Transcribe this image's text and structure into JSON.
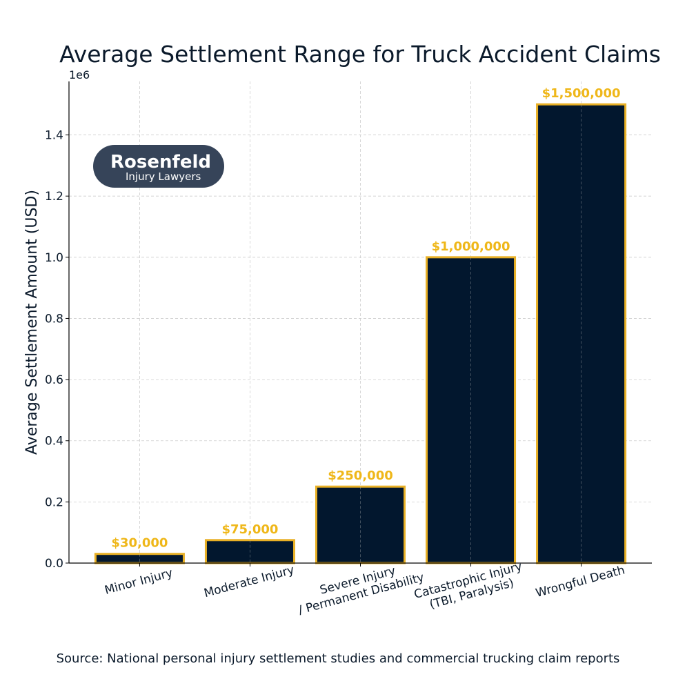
{
  "chart_data": {
    "type": "bar",
    "title": "Average Settlement Range for Truck Accident Claims",
    "xlabel": "",
    "ylabel": "Average Settlement Amount (USD)",
    "y_offset_label": "1e6",
    "categories": [
      [
        "Minor Injury"
      ],
      [
        "Moderate Injury"
      ],
      [
        "Severe Injury",
        "/ Permanent Disability"
      ],
      [
        "Catastrophic Injury",
        "(TBI, Paralysis)"
      ],
      [
        "Wrongful Death"
      ]
    ],
    "values": [
      30000,
      75000,
      250000,
      1000000,
      1500000
    ],
    "data_labels": [
      "$30,000",
      "$75,000",
      "$250,000",
      "$1,000,000",
      "$1,500,000"
    ],
    "ylim": [
      0,
      1575000
    ],
    "yticks": [
      0,
      200000,
      400000,
      600000,
      800000,
      1000000,
      1200000,
      1400000
    ],
    "ytick_labels": [
      "0.0",
      "0.2",
      "0.4",
      "0.6",
      "0.8",
      "1.0",
      "1.2",
      "1.4"
    ],
    "grid": true,
    "colors": {
      "bar_fill": "#02172e",
      "bar_edge": "#e8b026",
      "data_label": "#efb719",
      "text": "#0b1a2b",
      "grid": "#cccccc"
    }
  },
  "logo": {
    "line1": "Rosenfeld",
    "line2": "Injury Lawyers",
    "color": "#364459"
  },
  "source": "Source: National personal injury settlement studies and commercial trucking claim reports"
}
